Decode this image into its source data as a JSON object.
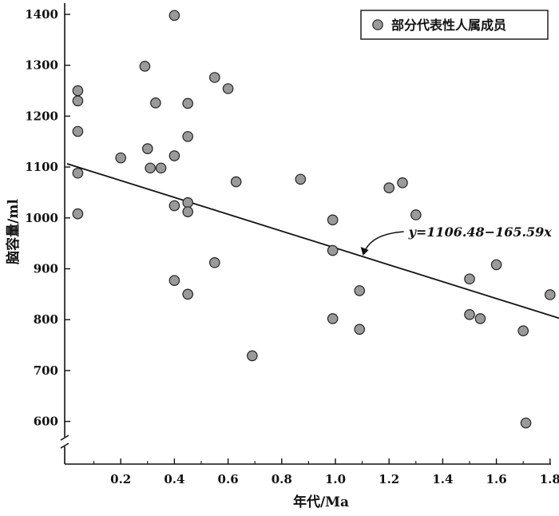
{
  "chart_data": {
    "type": "scatter",
    "title": "",
    "xlabel": "年代/Ma",
    "ylabel": "脑容量/ml",
    "xlim": [
      0,
      1.9
    ],
    "ylim": [
      520,
      1400
    ],
    "x_ticks": [
      "0.2",
      "0.4",
      "0.6",
      "0.8",
      "1.0",
      "1.2",
      "1.4",
      "1.6",
      "1.8"
    ],
    "y_ticks": [
      "600",
      "700",
      "800",
      "900",
      "1000",
      "1100",
      "1200",
      "1300",
      "1400"
    ],
    "y_axis_break": true,
    "grid": false,
    "legend": {
      "position": "top-right"
    },
    "series": [
      {
        "name": "部分代表性人属成员",
        "marker": "circle",
        "color": "#9a9a9a",
        "points": [
          {
            "x": 0.04,
            "y": 1250
          },
          {
            "x": 0.04,
            "y": 1230
          },
          {
            "x": 0.04,
            "y": 1170
          },
          {
            "x": 0.04,
            "y": 1088
          },
          {
            "x": 0.04,
            "y": 1008
          },
          {
            "x": 0.2,
            "y": 1118
          },
          {
            "x": 0.29,
            "y": 1298
          },
          {
            "x": 0.3,
            "y": 1136
          },
          {
            "x": 0.31,
            "y": 1098
          },
          {
            "x": 0.33,
            "y": 1226
          },
          {
            "x": 0.35,
            "y": 1098
          },
          {
            "x": 0.4,
            "y": 1398
          },
          {
            "x": 0.4,
            "y": 1122
          },
          {
            "x": 0.4,
            "y": 1024
          },
          {
            "x": 0.4,
            "y": 877
          },
          {
            "x": 0.45,
            "y": 1225
          },
          {
            "x": 0.45,
            "y": 1160
          },
          {
            "x": 0.45,
            "y": 1030
          },
          {
            "x": 0.45,
            "y": 1012
          },
          {
            "x": 0.45,
            "y": 850
          },
          {
            "x": 0.55,
            "y": 1276
          },
          {
            "x": 0.55,
            "y": 912
          },
          {
            "x": 0.6,
            "y": 1254
          },
          {
            "x": 0.63,
            "y": 1071
          },
          {
            "x": 0.69,
            "y": 729
          },
          {
            "x": 0.87,
            "y": 1076
          },
          {
            "x": 0.99,
            "y": 996
          },
          {
            "x": 0.99,
            "y": 936
          },
          {
            "x": 0.99,
            "y": 802
          },
          {
            "x": 1.09,
            "y": 857
          },
          {
            "x": 1.09,
            "y": 781
          },
          {
            "x": 1.2,
            "y": 1059
          },
          {
            "x": 1.25,
            "y": 1069
          },
          {
            "x": 1.3,
            "y": 1006
          },
          {
            "x": 1.5,
            "y": 880
          },
          {
            "x": 1.5,
            "y": 810
          },
          {
            "x": 1.54,
            "y": 802
          },
          {
            "x": 1.6,
            "y": 908
          },
          {
            "x": 1.7,
            "y": 778
          },
          {
            "x": 1.71,
            "y": 597
          },
          {
            "x": 1.8,
            "y": 849
          }
        ]
      }
    ],
    "regression": {
      "intercept": 1106.48,
      "slope": -165.59,
      "x_range": [
        0,
        1.9
      ],
      "equation": "y=1106.48−165.59x",
      "arrow_target_x": 1.1
    }
  }
}
